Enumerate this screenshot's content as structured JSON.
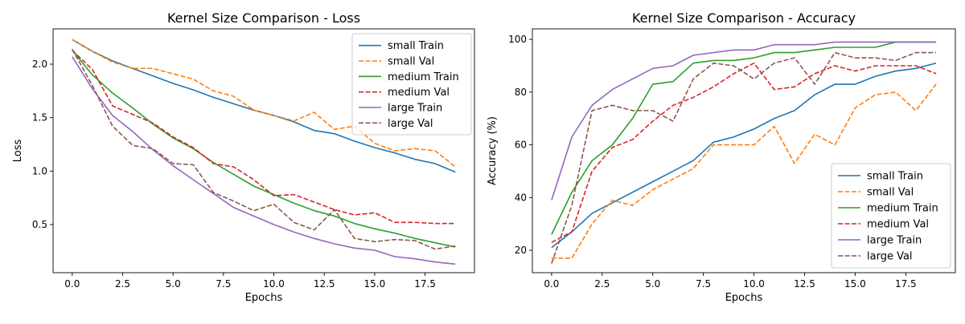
{
  "chart_data": [
    {
      "type": "line",
      "title": "Kernel Size Comparison - Loss",
      "xlabel": "Epochs",
      "ylabel": "Loss",
      "xlim": [
        -0.95,
        19.95
      ],
      "ylim": [
        0.05,
        2.33
      ],
      "xticks": [
        0,
        2.5,
        5,
        7.5,
        10,
        12.5,
        15,
        17.5
      ],
      "xtick_labels": [
        "0.0",
        "2.5",
        "5.0",
        "7.5",
        "10.0",
        "12.5",
        "15.0",
        "17.5"
      ],
      "yticks": [
        0.5,
        1.0,
        1.5,
        2.0
      ],
      "ytick_labels": [
        "0.5",
        "1.0",
        "1.5",
        "2.0"
      ],
      "grid": false,
      "legend": "top-right",
      "x": [
        0,
        1,
        2,
        3,
        4,
        5,
        6,
        7,
        8,
        9,
        10,
        11,
        12,
        13,
        14,
        15,
        16,
        17,
        18,
        19
      ],
      "series": [
        {
          "name": "small Train",
          "color": "#1f77b4",
          "dash": "solid",
          "values": [
            2.23,
            2.12,
            2.03,
            1.96,
            1.89,
            1.82,
            1.76,
            1.69,
            1.63,
            1.57,
            1.52,
            1.46,
            1.38,
            1.35,
            1.28,
            1.22,
            1.17,
            1.11,
            1.07,
            0.99
          ]
        },
        {
          "name": "small Val",
          "color": "#ff7f0e",
          "dash": "dashed",
          "values": [
            2.23,
            2.12,
            2.02,
            1.96,
            1.96,
            1.91,
            1.86,
            1.75,
            1.7,
            1.57,
            1.52,
            1.47,
            1.55,
            1.39,
            1.42,
            1.26,
            1.19,
            1.21,
            1.19,
            1.04
          ]
        },
        {
          "name": "medium Train",
          "color": "#2ca02c",
          "dash": "solid",
          "values": [
            2.13,
            1.9,
            1.73,
            1.59,
            1.44,
            1.31,
            1.21,
            1.08,
            0.97,
            0.86,
            0.78,
            0.7,
            0.63,
            0.58,
            0.51,
            0.46,
            0.42,
            0.37,
            0.33,
            0.29
          ]
        },
        {
          "name": "medium Val",
          "color": "#d62728",
          "dash": "dashed",
          "values": [
            2.13,
            1.95,
            1.61,
            1.53,
            1.45,
            1.32,
            1.22,
            1.07,
            1.04,
            0.92,
            0.77,
            0.78,
            0.71,
            0.64,
            0.59,
            0.61,
            0.52,
            0.52,
            0.51,
            0.51
          ]
        },
        {
          "name": "large Train",
          "color": "#9467bd",
          "dash": "solid",
          "values": [
            2.07,
            1.77,
            1.52,
            1.37,
            1.2,
            1.05,
            0.92,
            0.79,
            0.66,
            0.58,
            0.5,
            0.43,
            0.37,
            0.32,
            0.28,
            0.26,
            0.2,
            0.18,
            0.15,
            0.13
          ]
        },
        {
          "name": "large Val",
          "color": "#8c564b",
          "dash": "dashed",
          "values": [
            2.14,
            1.8,
            1.42,
            1.24,
            1.21,
            1.07,
            1.06,
            0.8,
            0.72,
            0.63,
            0.69,
            0.52,
            0.45,
            0.64,
            0.37,
            0.34,
            0.36,
            0.35,
            0.27,
            0.3
          ]
        }
      ]
    },
    {
      "type": "line",
      "title": "Kernel Size Comparison - Accuracy",
      "xlabel": "Epochs",
      "ylabel": "Accuracy (%)",
      "xlim": [
        -0.95,
        19.95
      ],
      "ylim": [
        11.5,
        104
      ],
      "xticks": [
        0,
        2.5,
        5,
        7.5,
        10,
        12.5,
        15,
        17.5
      ],
      "xtick_labels": [
        "0.0",
        "2.5",
        "5.0",
        "7.5",
        "10.0",
        "12.5",
        "15.0",
        "17.5"
      ],
      "yticks": [
        20,
        40,
        60,
        80,
        100
      ],
      "ytick_labels": [
        "20",
        "40",
        "60",
        "80",
        "100"
      ],
      "grid": false,
      "legend": "bottom-right",
      "x": [
        0,
        1,
        2,
        3,
        4,
        5,
        6,
        7,
        8,
        9,
        10,
        11,
        12,
        13,
        14,
        15,
        16,
        17,
        18,
        19
      ],
      "series": [
        {
          "name": "small Train",
          "color": "#1f77b4",
          "dash": "solid",
          "values": [
            21,
            27,
            34,
            38,
            42,
            46,
            50,
            54,
            61,
            63,
            66,
            70,
            73,
            79,
            83,
            83,
            86,
            88,
            89,
            91
          ]
        },
        {
          "name": "small Val",
          "color": "#ff7f0e",
          "dash": "dashed",
          "values": [
            17,
            17,
            30,
            39,
            37,
            43,
            47,
            51,
            60,
            60,
            60,
            67,
            53,
            64,
            60,
            74,
            79,
            80,
            73,
            83
          ]
        },
        {
          "name": "medium Train",
          "color": "#2ca02c",
          "dash": "solid",
          "values": [
            26,
            42,
            54,
            60,
            70,
            83,
            84,
            91,
            92,
            92,
            93,
            95,
            95,
            96,
            97,
            97,
            97,
            99,
            99,
            99
          ]
        },
        {
          "name": "medium Val",
          "color": "#d62728",
          "dash": "dashed",
          "values": [
            23,
            27,
            50,
            59,
            62,
            69,
            75,
            78,
            82,
            87,
            91,
            81,
            82,
            87,
            90,
            88,
            90,
            90,
            90,
            87
          ]
        },
        {
          "name": "large Train",
          "color": "#9467bd",
          "dash": "solid",
          "values": [
            39,
            63,
            75,
            81,
            85,
            89,
            90,
            94,
            95,
            96,
            96,
            98,
            98,
            98,
            99,
            99,
            99,
            99,
            99,
            99
          ]
        },
        {
          "name": "large Val",
          "color": "#8c564b",
          "dash": "dashed",
          "values": [
            15,
            37,
            73,
            75,
            73,
            73,
            69,
            85,
            91,
            90,
            85,
            91,
            93,
            83,
            95,
            93,
            93,
            92,
            95,
            95
          ]
        }
      ]
    }
  ]
}
